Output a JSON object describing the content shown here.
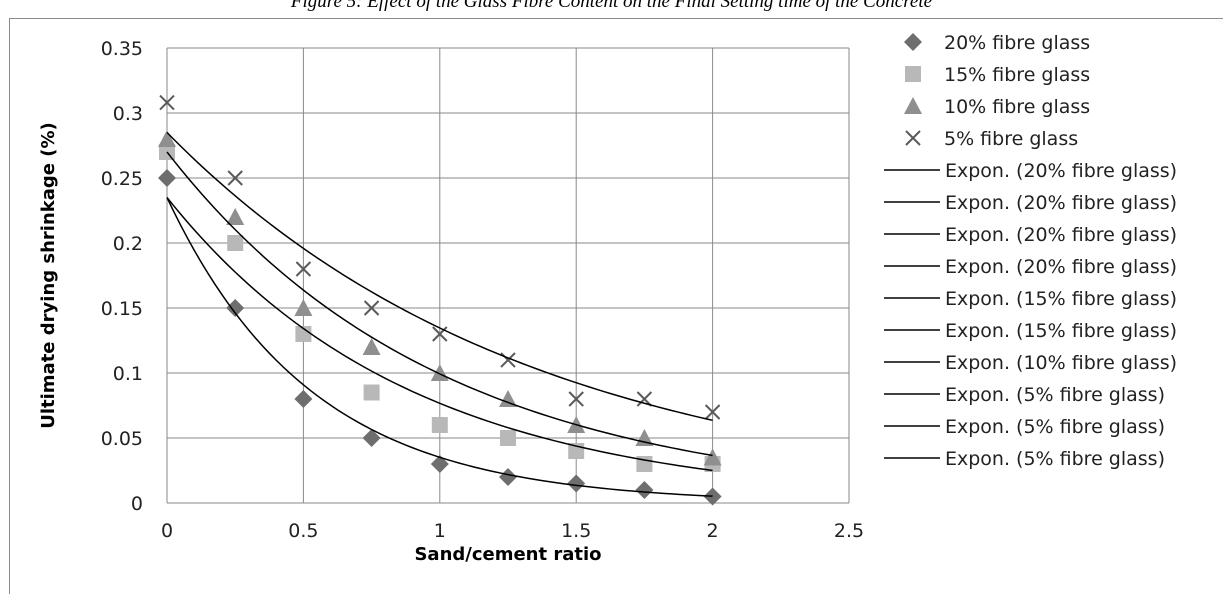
{
  "caption": "Figure 5: Effect of the Glass Fibre Content on the Final Setting time of the Concrete",
  "chart_data": {
    "type": "scatter",
    "title": "",
    "xlabel": "Sand/cement  ratio",
    "ylabel": "Ultimate drying shrinkage (%)",
    "xlim": [
      0,
      2.5
    ],
    "ylim": [
      0,
      0.35
    ],
    "x_ticks": [
      "0",
      "0.5",
      "1",
      "1.5",
      "2",
      "2.5"
    ],
    "y_ticks": [
      "0",
      "0.05",
      "0.1",
      "0.15",
      "0.2",
      "0.25",
      "0.3",
      "0.35"
    ],
    "grid": true,
    "legend_position": "right",
    "x": [
      0,
      0.25,
      0.5,
      0.75,
      1,
      1.25,
      1.5,
      1.75,
      2
    ],
    "series": [
      {
        "name": "20% fibre glass",
        "marker": "diamond",
        "color": "#6e6e6e",
        "values": [
          0.25,
          0.15,
          0.08,
          0.05,
          0.03,
          0.02,
          0.015,
          0.01,
          0.005
        ]
      },
      {
        "name": "15% fibre glass",
        "marker": "square",
        "color": "#b8b8b8",
        "values": [
          0.27,
          0.2,
          0.13,
          0.085,
          0.06,
          0.05,
          0.04,
          0.03,
          0.03
        ]
      },
      {
        "name": "10% fibre glass",
        "marker": "triangle",
        "color": "#8f8f8f",
        "values": [
          0.28,
          0.22,
          0.15,
          0.12,
          0.1,
          0.08,
          0.06,
          0.05,
          0.035
        ]
      },
      {
        "name": "5% fibre glass",
        "marker": "x",
        "color": "#5a5a5a",
        "values": [
          0.308,
          0.25,
          0.18,
          0.15,
          0.13,
          0.11,
          0.08,
          0.08,
          0.07
        ]
      }
    ],
    "trendlines": [
      {
        "type": "exponential",
        "a": 0.235,
        "b": -1.9
      },
      {
        "type": "exponential",
        "a": 0.235,
        "b": -1.12
      },
      {
        "type": "exponential",
        "a": 0.27,
        "b": -1.0
      },
      {
        "type": "exponential",
        "a": 0.285,
        "b": -0.75
      }
    ],
    "legend_entries": [
      "20% fibre glass",
      "15% fibre glass",
      "10% fibre glass",
      "5% fibre glass",
      "Expon. (20% fibre glass)",
      "Expon. (20% fibre glass)",
      "Expon. (20% fibre glass)",
      "Expon. (20% fibre glass)",
      "Expon. (15% fibre glass)",
      "Expon. (15% fibre glass)",
      "Expon. (10% fibre glass)",
      "Expon. (5% fibre glass)",
      "Expon. (5% fibre glass)",
      "Expon. (5% fibre glass)"
    ]
  }
}
